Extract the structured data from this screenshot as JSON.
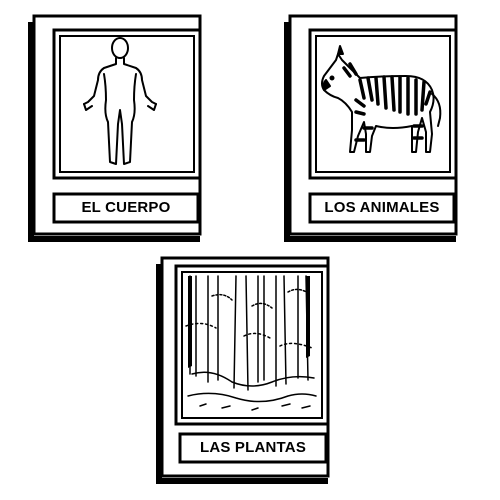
{
  "books": [
    {
      "title": "EL CUERPO",
      "icon": "human-body-icon"
    },
    {
      "title": "LOS ANIMALES",
      "icon": "zebra-icon"
    },
    {
      "title": "LAS PLANTAS",
      "icon": "forest-icon"
    }
  ],
  "colors": {
    "ink": "#000000",
    "paper": "#ffffff"
  }
}
